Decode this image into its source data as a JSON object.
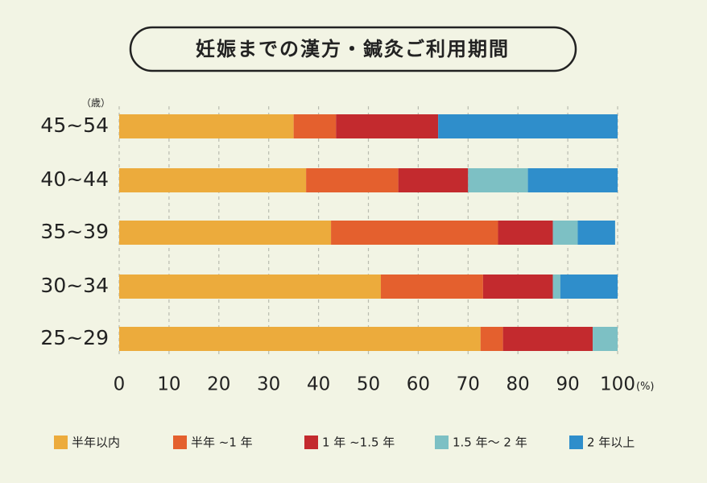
{
  "chart_data": {
    "type": "bar",
    "orientation": "horizontal",
    "stacked": true,
    "title": "妊娠までの漢方・鍼灸ご利用期間",
    "yunit": "（歳）",
    "xunit": "(%)",
    "categories": [
      "45~54",
      "40~44",
      "35~39",
      "30~34",
      "25~29"
    ],
    "xticks": [
      0,
      10,
      20,
      30,
      40,
      50,
      60,
      70,
      80,
      90,
      100
    ],
    "xlim": [
      0,
      100
    ],
    "grid": true,
    "legend_position": "bottom",
    "series": [
      {
        "name": "半年以内",
        "color": "#ecab3c",
        "values": [
          35,
          37.5,
          42.5,
          52.5,
          72.5
        ]
      },
      {
        "name": "半年 ~1 年",
        "color": "#e4602e",
        "values": [
          8.5,
          18.5,
          33.5,
          20.5,
          4.5
        ]
      },
      {
        "name": "1 年 ~1.5 年",
        "color": "#c32a2e",
        "values": [
          20.5,
          14,
          11,
          14,
          18
        ]
      },
      {
        "name": "1.5 年〜 2 年",
        "color": "#7dc0c4",
        "values": [
          0,
          12,
          5,
          1.5,
          5
        ]
      },
      {
        "name": "2 年以上",
        "color": "#2f8ecb",
        "values": [
          36,
          18,
          7.5,
          11.5,
          0
        ]
      }
    ]
  }
}
